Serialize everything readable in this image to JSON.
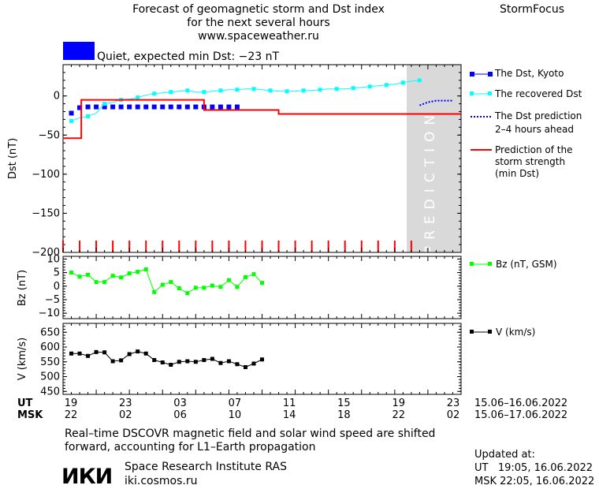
{
  "header": {
    "title_lines": [
      "Forecast of geomagnetic storm and Dst index",
      "for the next several hours",
      "www.spaceweather.ru"
    ],
    "brand": "StormFocus",
    "status_text": "Quiet, expected min Dst: −23 nT",
    "status_color": "#0000ff"
  },
  "chart_data": [
    {
      "type": "line",
      "panel": "dst",
      "ylabel": "Dst (nT)",
      "ylim": [
        -200,
        40
      ],
      "yticks": [
        0,
        -50,
        -100,
        -150,
        -200
      ],
      "prediction_label": "PREDICTION",
      "grid": false,
      "legend": [
        "The Dst, Kyoto",
        "The recovered Dst",
        "The Dst prediction",
        "2–4 hours ahead",
        "Prediction of the",
        "storm strength",
        "(min Dst)"
      ],
      "series": [
        {
          "name": "The Dst, Kyoto",
          "color": "#0000ff",
          "style": "squares",
          "x": [
            20,
            21,
            22,
            23,
            24,
            25,
            26,
            27,
            28,
            29,
            30,
            31,
            32,
            33,
            34,
            35,
            36,
            37,
            38,
            39,
            40
          ],
          "y": [
            -22,
            -15,
            -14,
            -14,
            -14,
            -14,
            -14,
            -14,
            -14,
            -14,
            -14,
            -14,
            -14,
            -14,
            -14,
            -14,
            -14,
            -14,
            -14,
            -14,
            -14
          ]
        },
        {
          "name": "The recovered Dst",
          "color": "#00ffff",
          "style": "line-squares",
          "x": [
            20,
            21,
            22,
            23,
            24,
            25,
            26,
            27,
            28,
            29,
            30,
            31,
            32,
            33,
            34,
            35,
            36,
            37,
            38,
            39,
            40,
            41,
            42,
            43,
            44,
            45,
            46,
            47,
            48,
            49,
            50,
            51,
            52,
            53,
            54,
            55,
            56,
            57,
            58,
            59,
            60,
            61,
            62
          ],
          "y": [
            -32,
            -28,
            -26,
            -22,
            -10,
            -8,
            -5,
            -4,
            -2,
            1,
            3,
            4,
            5,
            6,
            7,
            5,
            5,
            6,
            7,
            8,
            8,
            9,
            9,
            8,
            7,
            6,
            6,
            6,
            7,
            7,
            8,
            9,
            9,
            9,
            10,
            11,
            12,
            13,
            14,
            15,
            17,
            19,
            20
          ]
        },
        {
          "name": "The Dst prediction",
          "color": "#0000ff",
          "style": "dotted",
          "x": [
            62,
            63,
            64,
            65,
            66
          ],
          "y": [
            -12,
            -8,
            -6,
            -6,
            -6
          ]
        },
        {
          "name": "Prediction of the storm strength (min Dst)",
          "color": "#ff0000",
          "style": "step",
          "x": [
            19,
            20.1,
            21.2,
            22,
            23,
            24,
            25,
            26,
            27,
            28,
            29,
            30,
            31,
            32,
            33,
            34,
            35,
            36,
            37,
            38,
            39,
            40,
            41,
            42,
            43,
            44,
            45,
            46,
            47,
            48,
            49,
            50,
            51,
            52,
            53,
            54,
            55,
            56,
            57,
            58,
            59,
            60,
            61,
            62,
            63,
            64,
            65,
            66,
            67
          ],
          "y": [
            -54,
            -54,
            -5,
            -5,
            -5,
            -5,
            -5,
            -5,
            -5,
            -5,
            -5,
            -5,
            -5,
            -5,
            -5,
            -5,
            -5,
            -18,
            -18,
            -18,
            -18,
            -18,
            -18,
            -18,
            -18,
            -18,
            -23,
            -23,
            -23,
            -23,
            -23,
            -23,
            -23,
            -23,
            -23,
            -23,
            -23,
            -23,
            -23,
            -23,
            -23,
            -23,
            -23,
            -23,
            -23,
            -23,
            -23,
            -23,
            -23
          ]
        }
      ]
    },
    {
      "type": "line",
      "panel": "bz",
      "ylabel": "Bz (nT)",
      "ylim": [
        -12,
        11
      ],
      "yticks": [
        10,
        5,
        0,
        -5,
        -10
      ],
      "series": [
        {
          "name": "Bz (nT, GSM)",
          "color": "#00ff00",
          "x": [
            20,
            21,
            22,
            23,
            24,
            25,
            26,
            27,
            28,
            29,
            30,
            31,
            32,
            33,
            34,
            35,
            36,
            37,
            38,
            39,
            40
          ],
          "y": [
            5,
            3.5,
            4.2,
            1.5,
            1.5,
            3.8,
            3.2,
            4.7,
            5.3,
            6.2,
            -2.2,
            0.5,
            1.5,
            -0.8,
            -2.6,
            -0.6,
            -0.6,
            0.2,
            -0.3,
            2.2,
            -0.3
          ]
        },
        {
          "name": "Bz (nT, GSM)",
          "color": "#00ff00",
          "x": [
            40,
            41,
            42,
            43
          ],
          "y": [
            -0.3,
            3.3,
            4.4,
            1.2
          ]
        }
      ]
    },
    {
      "type": "line",
      "panel": "v",
      "ylabel": "V (km/s)",
      "ylim": [
        440,
        680
      ],
      "yticks": [
        650,
        600,
        550,
        500,
        450
      ],
      "series": [
        {
          "name": "V (km/s)",
          "color": "#000000",
          "x": [
            20,
            21,
            22,
            23,
            24,
            25,
            26,
            27,
            28,
            29,
            30,
            31,
            32,
            33,
            34,
            35,
            36,
            37,
            38,
            39,
            40,
            41,
            42,
            43
          ],
          "y": [
            578,
            578,
            570,
            583,
            582,
            552,
            555,
            576,
            585,
            578,
            556,
            548,
            540,
            550,
            552,
            550,
            556,
            560,
            546,
            552,
            542,
            532,
            544,
            558
          ]
        }
      ]
    }
  ],
  "x_axis": {
    "ut_label": "UT",
    "msk_label": "MSK",
    "ut_ticks": [
      "19",
      "23",
      "03",
      "07",
      "11",
      "15",
      "19",
      "23"
    ],
    "msk_ticks": [
      "22",
      "02",
      "06",
      "10",
      "14",
      "18",
      "22",
      "02"
    ],
    "ut_range": "15.06–16.06.2022",
    "msk_range": "15.06–17.06.2022"
  },
  "legend_bz": "Bz (nT, GSM)",
  "legend_v": "V (km/s)",
  "footer": {
    "note_lines": [
      "Real–time DSCOVR magnetic field and solar wind speed are shifted",
      "forward, accounting for L1–Earth propagation"
    ],
    "logo_text": "ИКИ",
    "institute": "Space Research Institute RAS",
    "site": "iki.cosmos.ru",
    "updated_label": "Updated at:",
    "updated_ut": "UT   19:05, 16.06.2022",
    "updated_msk": "MSK 22:05, 16.06.2022"
  }
}
